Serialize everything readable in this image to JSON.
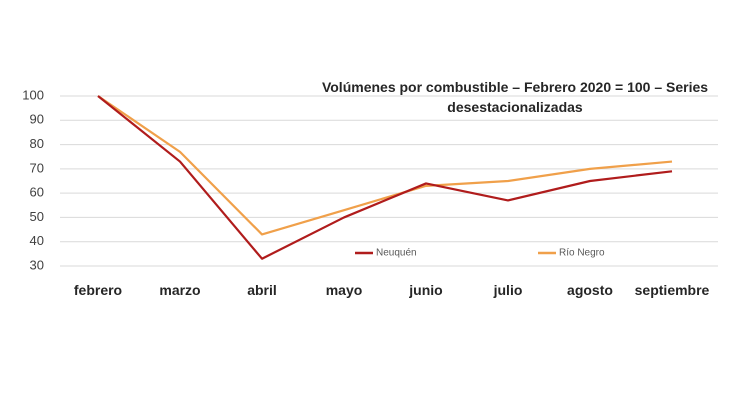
{
  "chart_data": {
    "type": "line",
    "title_lines": [
      "Volúmenes por combustible – Febrero 2020 = 100 – Series",
      "desestacionalizadas"
    ],
    "categories": [
      "febrero",
      "marzo",
      "abril",
      "mayo",
      "junio",
      "julio",
      "agosto",
      "septiembre"
    ],
    "ylim": [
      30,
      100
    ],
    "yticks": [
      30,
      40,
      50,
      60,
      70,
      80,
      90,
      100
    ],
    "grid": true,
    "series": [
      {
        "name": "Neuquén",
        "color": "#b01c1c",
        "values": [
          100,
          73,
          33,
          50,
          64,
          57,
          65,
          69
        ]
      },
      {
        "name": "Río Negro",
        "color": "#f0a04a",
        "values": [
          100,
          77,
          43,
          53,
          63,
          65,
          70,
          73
        ]
      }
    ]
  }
}
